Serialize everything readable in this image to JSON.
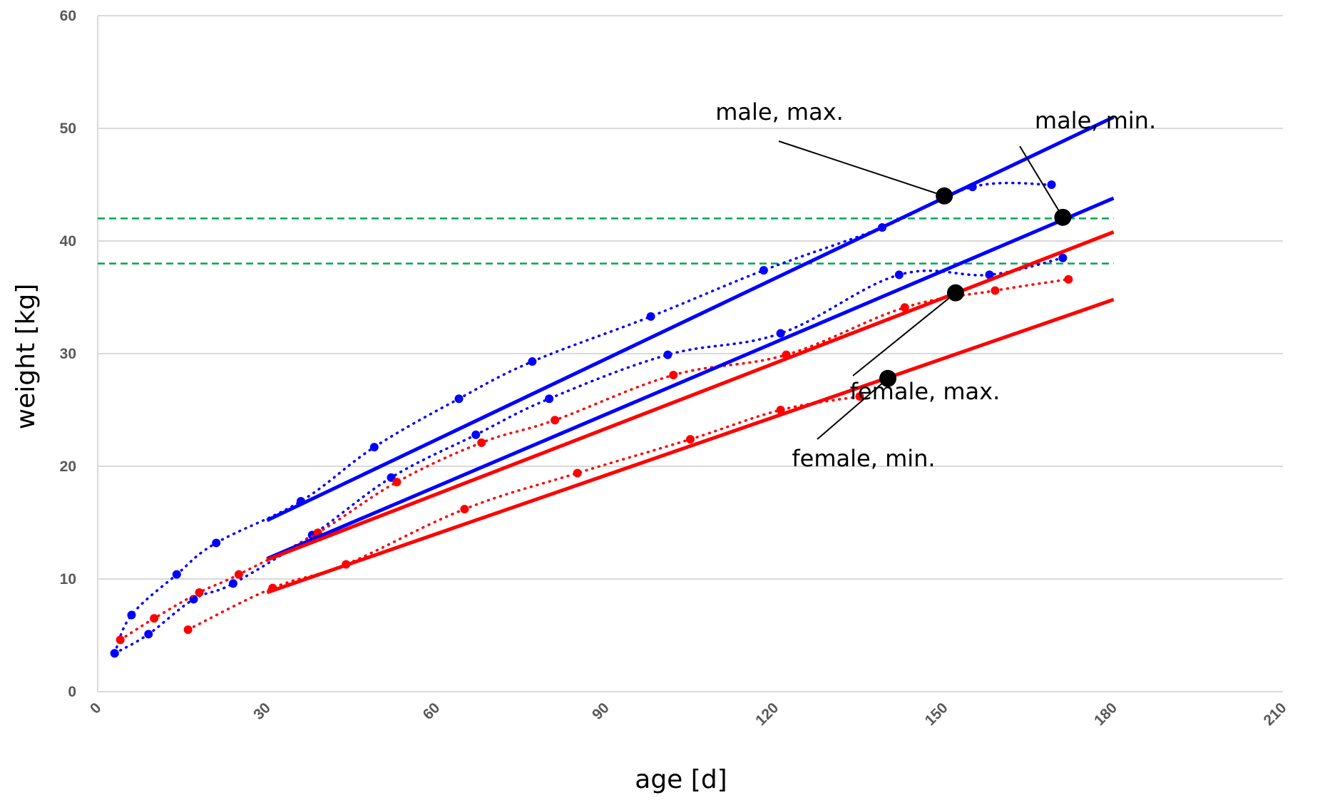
{
  "chart_data": {
    "type": "scatter",
    "xlabel": "age [d]",
    "ylabel": "weight [kg]",
    "xlim": [
      0,
      210
    ],
    "ylim": [
      0,
      60
    ],
    "xticks": [
      "0",
      "30",
      "60",
      "90",
      "120",
      "150",
      "180",
      "210"
    ],
    "yticks": [
      "0",
      "10",
      "20",
      "30",
      "40",
      "50",
      "60"
    ],
    "grid": "horizontal",
    "legend": "none",
    "colors": {
      "male": "#0000ff",
      "female": "#ff0000",
      "reference": "#00a651",
      "marker": "#000000",
      "grid": "#d9d9d9"
    },
    "reference_lines": [
      {
        "y": 42,
        "style": "dashed"
      },
      {
        "y": 38,
        "style": "dashed"
      }
    ],
    "series": [
      {
        "kind": "observed",
        "sex": "male",
        "x": [
          3,
          6,
          14,
          21,
          36,
          49,
          64,
          77,
          98,
          118,
          139,
          155,
          169
        ],
        "y": [
          3.4,
          6.8,
          10.4,
          13.2,
          16.9,
          21.7,
          26.0,
          29.3,
          33.3,
          37.4,
          41.2,
          44.8,
          45.0
        ]
      },
      {
        "kind": "observed",
        "sex": "male",
        "x": [
          3,
          9,
          17,
          24,
          38,
          52,
          67,
          80,
          101,
          121,
          142,
          158,
          171
        ],
        "y": [
          3.4,
          5.1,
          8.2,
          9.6,
          13.9,
          19.0,
          22.8,
          26.0,
          29.9,
          31.8,
          37.0,
          37.0,
          38.5
        ]
      },
      {
        "kind": "observed",
        "sex": "female",
        "x": [
          4,
          10,
          18,
          25,
          39,
          53,
          68,
          81,
          102,
          122,
          143,
          159,
          172
        ],
        "y": [
          4.6,
          6.5,
          8.8,
          10.4,
          14.1,
          18.6,
          22.1,
          24.1,
          28.1,
          29.9,
          34.1,
          35.6,
          36.6
        ]
      },
      {
        "kind": "observed",
        "sex": "female",
        "x": [
          16,
          31,
          44,
          65,
          85,
          105,
          121,
          135
        ],
        "y": [
          5.5,
          9.2,
          11.3,
          16.2,
          19.4,
          22.4,
          25.0,
          26.2
        ]
      },
      {
        "kind": "fit",
        "sex": "male",
        "x": [
          30,
          180
        ],
        "y": [
          15.2,
          51.0
        ]
      },
      {
        "kind": "fit",
        "sex": "male",
        "x": [
          30,
          180
        ],
        "y": [
          11.8,
          43.8
        ]
      },
      {
        "kind": "fit",
        "sex": "female",
        "x": [
          30,
          180
        ],
        "y": [
          11.7,
          40.8
        ]
      },
      {
        "kind": "fit",
        "sex": "female",
        "x": [
          30,
          180
        ],
        "y": [
          8.8,
          34.8
        ]
      }
    ],
    "highlight_points": [
      {
        "x": 150,
        "y": 44.0
      },
      {
        "x": 171,
        "y": 42.1
      },
      {
        "x": 152,
        "y": 35.4
      },
      {
        "x": 140,
        "y": 27.8
      }
    ],
    "annotations": [
      {
        "text": "male, max.",
        "target_index": 0
      },
      {
        "text": "male, min.",
        "target_index": 1
      },
      {
        "text": "female, max.",
        "target_index": 2
      },
      {
        "text": "female, min.",
        "target_index": 3
      }
    ]
  }
}
